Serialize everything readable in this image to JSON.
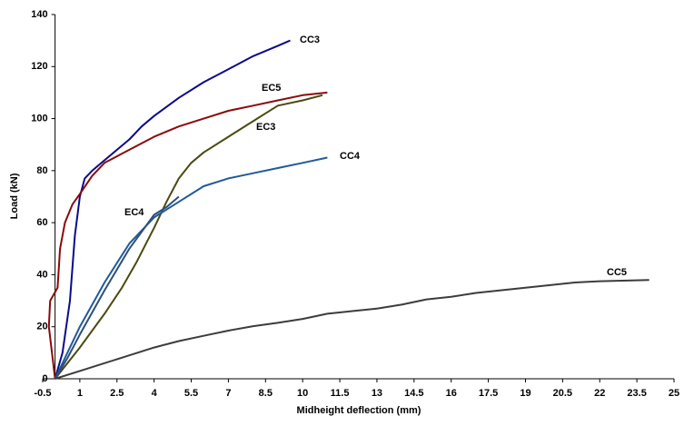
{
  "chart_data": {
    "type": "line",
    "x_label": "Midheight deflection (mm)",
    "y_label": "Load (kN)",
    "xlim": [
      -0.5,
      25
    ],
    "ylim": [
      0,
      140
    ],
    "xticks": [
      -0.5,
      1,
      2.5,
      4,
      5.5,
      7,
      8.5,
      10,
      11.5,
      13,
      14.5,
      16,
      17.5,
      19,
      20.5,
      22,
      23.5,
      25
    ],
    "yticks": [
      0,
      20,
      40,
      60,
      80,
      100,
      120,
      140
    ],
    "series": [
      {
        "name": "CC3",
        "color": "#0a0a8c",
        "x": [
          0,
          0.3,
          0.6,
          0.8,
          1,
          1.2,
          1.5,
          2,
          2.5,
          3,
          3.5,
          4,
          5,
          6,
          7,
          8,
          9,
          9.5
        ],
        "values": [
          0,
          10,
          30,
          55,
          70,
          77,
          80,
          84,
          88,
          92,
          97,
          101,
          108,
          114,
          119,
          124,
          128,
          130
        ]
      },
      {
        "name": "EC5",
        "color": "#8b0a0a",
        "x": [
          0,
          -0.25,
          -0.2,
          0.1,
          0.2,
          0.4,
          0.7,
          1,
          1.5,
          2,
          3,
          4,
          5,
          6,
          7,
          8,
          9,
          10,
          11
        ],
        "values": [
          0,
          20,
          30,
          35,
          50,
          60,
          67,
          71,
          78,
          83,
          88,
          93,
          97,
          100,
          103,
          105,
          107,
          109,
          110
        ]
      },
      {
        "name": "EC3",
        "color": "#4a4a10",
        "x": [
          0,
          1,
          2,
          2.7,
          3.3,
          4,
          4.5,
          5,
          5.5,
          6,
          7,
          8,
          8.5,
          9,
          10,
          10.8
        ],
        "values": [
          0,
          12,
          25,
          35,
          45,
          58,
          68,
          77,
          83,
          87,
          93,
          99,
          102,
          105,
          107,
          109
        ]
      },
      {
        "name": "CC4",
        "color": "#1f5b99",
        "x": [
          0,
          1,
          2,
          3,
          4,
          5,
          6,
          7,
          8,
          9,
          10,
          11
        ],
        "values": [
          0,
          20,
          37,
          52,
          62,
          68,
          74,
          77,
          79,
          81,
          83,
          85
        ]
      },
      {
        "name": "EC4",
        "color": "#2e4f7a",
        "x": [
          0,
          0.5,
          1,
          2,
          3,
          4,
          4.5,
          5
        ],
        "values": [
          0,
          8,
          17,
          34,
          50,
          63,
          66,
          70
        ]
      },
      {
        "name": "CC5",
        "color": "#3c3c3c",
        "x": [
          0,
          1,
          2,
          3,
          4,
          5,
          6,
          7,
          8,
          9,
          10,
          11,
          12,
          13,
          14,
          15,
          16,
          17,
          18,
          19,
          20,
          21,
          22,
          24
        ],
        "values": [
          0,
          3,
          6,
          9,
          12,
          14.5,
          16.5,
          18.5,
          20.2,
          21.5,
          23,
          25,
          26,
          27,
          28.5,
          30.5,
          31.5,
          33,
          34,
          35,
          36,
          37,
          37.5,
          38
        ]
      }
    ]
  }
}
